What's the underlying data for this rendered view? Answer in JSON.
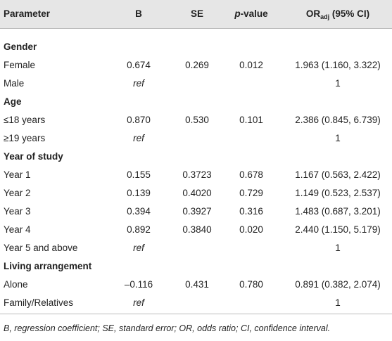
{
  "table": {
    "header": {
      "parameter": "Parameter",
      "b": "B",
      "se": "SE",
      "p_value": {
        "italic": "p",
        "rest": "-value"
      },
      "or": {
        "main": "OR",
        "sub": "adj",
        "rest": " (95% CI)"
      }
    },
    "groups": [
      {
        "name": "Gender",
        "rows": [
          {
            "label": "Female",
            "b": "0.674",
            "se": "0.269",
            "p": "0.012",
            "or": "1.963 (1.160, 3.322)"
          },
          {
            "label": "Male",
            "b": "ref",
            "or": "1"
          }
        ]
      },
      {
        "name": "Age",
        "rows": [
          {
            "label": "≤18 years",
            "b": "0.870",
            "se": "0.530",
            "p": "0.101",
            "or": "2.386 (0.845, 6.739)"
          },
          {
            "label": "≥19 years",
            "b": "ref",
            "or": "1"
          }
        ]
      },
      {
        "name": "Year of study",
        "rows": [
          {
            "label": "Year 1",
            "b": "0.155",
            "se": "0.3723",
            "p": "0.678",
            "or": "1.167 (0.563, 2.422)"
          },
          {
            "label": "Year 2",
            "b": "0.139",
            "se": "0.4020",
            "p": "0.729",
            "or": "1.149 (0.523, 2.537)"
          },
          {
            "label": "Year 3",
            "b": "0.394",
            "se": "0.3927",
            "p": "0.316",
            "or": "1.483 (0.687, 3.201)"
          },
          {
            "label": "Year 4",
            "b": "0.892",
            "se": "0.3840",
            "p": "0.020",
            "or": "2.440 (1.150, 5.179)"
          },
          {
            "label": "Year 5 and above",
            "b": "ref",
            "or": "1"
          }
        ]
      },
      {
        "name": "Living arrangement",
        "rows": [
          {
            "label": "Alone",
            "b": "–0.116",
            "se": "0.431",
            "p": "0.780",
            "or": "0.891 (0.382, 2.074)"
          },
          {
            "label": "Family/Relatives",
            "b": "ref",
            "or": "1"
          }
        ]
      }
    ],
    "footnote": "B, regression coefficient; SE, standard error; OR, odds ratio; CI, confidence interval."
  }
}
